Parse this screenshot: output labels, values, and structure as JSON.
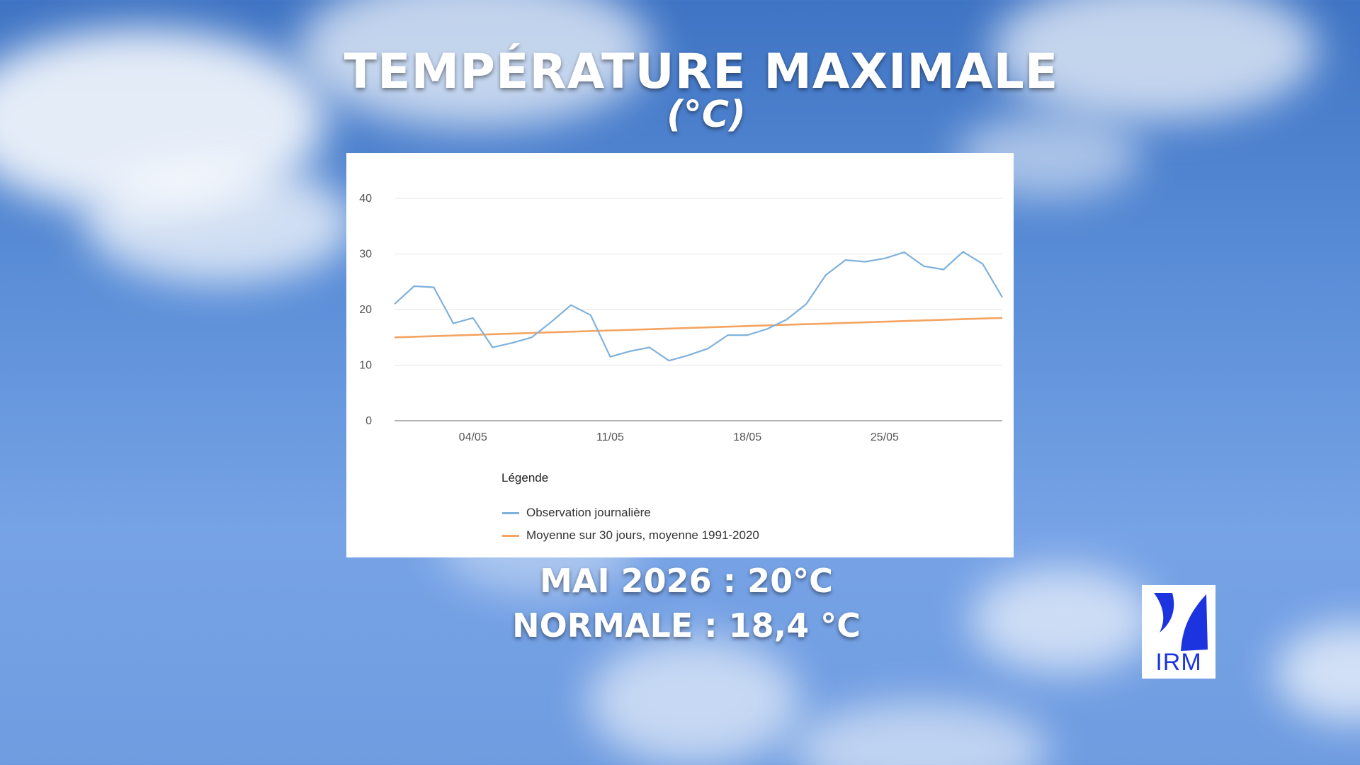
{
  "header": {
    "title": "TEMPÉRATURE MAXIMALE",
    "subtitle": "(°C)"
  },
  "summary": {
    "month_value": "MAI 2026 : 20°C",
    "normal_value": "NORMALE : 18,4 °C"
  },
  "logo": {
    "text": "IRM"
  },
  "colors": {
    "observation": "#7fb1dd",
    "average": "#f4a460",
    "grid": "#e6e6e6",
    "axis": "#b5b5b5"
  },
  "chart_data": {
    "type": "line",
    "title": "",
    "xlabel": "",
    "ylabel": "",
    "ylim": [
      0,
      40
    ],
    "yticks": [
      "0",
      "10",
      "20",
      "30",
      "40"
    ],
    "xlim": [
      1,
      31
    ],
    "xticks": [
      {
        "x": 4,
        "label": "04/05"
      },
      {
        "x": 11,
        "label": "11/05"
      },
      {
        "x": 18,
        "label": "18/05"
      },
      {
        "x": 25,
        "label": "25/05"
      }
    ],
    "grid": true,
    "legend_title": "Légende",
    "legend_position": "bottom-left",
    "series": [
      {
        "name": "Observation journalière",
        "color_key": "observation",
        "x": [
          0,
          1,
          2,
          3,
          4,
          5,
          6,
          7,
          8,
          9,
          10,
          11,
          12,
          13,
          14,
          15,
          16,
          17,
          18,
          19,
          20,
          21,
          22,
          23,
          24,
          25,
          26,
          27,
          28,
          29,
          30,
          31
        ],
        "values": [
          21,
          24.2,
          24,
          17.5,
          18.5,
          13.2,
          14,
          15,
          17.8,
          20.8,
          19,
          11.5,
          12.5,
          13.2,
          10.8,
          11.8,
          13,
          15.4,
          15.4,
          16.5,
          18.2,
          21,
          26.2,
          28.9,
          28.6,
          29.2,
          30.3,
          27.8,
          27.2,
          30.4,
          28.2,
          22.2
        ]
      },
      {
        "name": "Moyenne sur 30 jours, moyenne 1991-2020",
        "color_key": "average",
        "x": [
          0,
          31
        ],
        "values": [
          15,
          18.5
        ]
      }
    ]
  }
}
